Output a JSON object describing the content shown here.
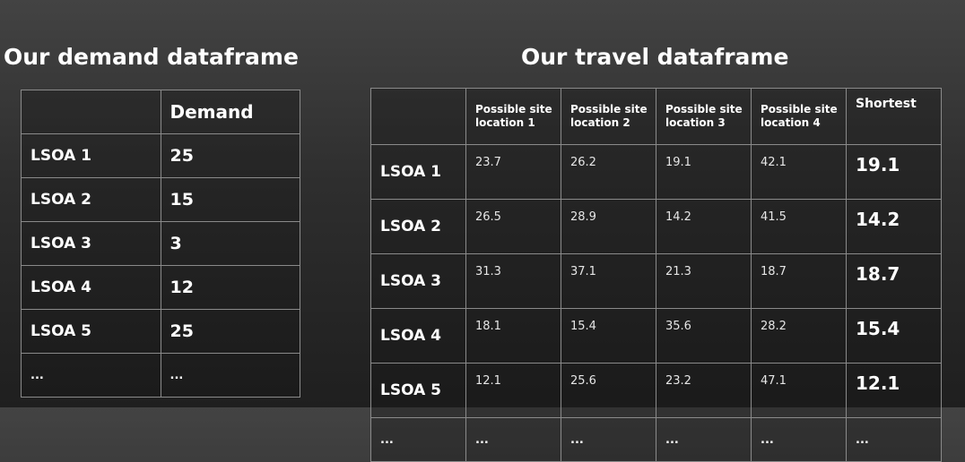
{
  "demand": {
    "title": "Our demand dataframe",
    "header": [
      "",
      "Demand"
    ],
    "rows": [
      {
        "label": "LSOA 1",
        "value": "25"
      },
      {
        "label": "LSOA 2",
        "value": "15"
      },
      {
        "label": "LSOA 3",
        "value": "3"
      },
      {
        "label": "LSOA 4",
        "value": "12"
      },
      {
        "label": "LSOA 5",
        "value": "25"
      },
      {
        "label": "...",
        "value": "..."
      }
    ]
  },
  "travel": {
    "title": "Our travel dataframe",
    "header": [
      "",
      "Possible site location 1",
      "Possible site location 2",
      "Possible site location 3",
      "Possible site location 4",
      "Shortest"
    ],
    "rows": [
      {
        "label": "LSOA 1",
        "values": [
          "23.7",
          "26.2",
          "19.1",
          "42.1"
        ],
        "shortest": "19.1"
      },
      {
        "label": "LSOA 2",
        "values": [
          "26.5",
          "28.9",
          "14.2",
          "41.5"
        ],
        "shortest": "14.2"
      },
      {
        "label": "LSOA 3",
        "values": [
          "31.3",
          "37.1",
          "21.3",
          "18.7"
        ],
        "shortest": "18.7"
      },
      {
        "label": "LSOA 4",
        "values": [
          "18.1",
          "15.4",
          "35.6",
          "28.2"
        ],
        "shortest": "15.4"
      },
      {
        "label": "LSOA 5",
        "values": [
          "12.1",
          "25.6",
          "23.2",
          "47.1"
        ],
        "shortest": "12.1"
      },
      {
        "label": "...",
        "values": [
          "...",
          "...",
          "...",
          "..."
        ],
        "shortest": "..."
      }
    ]
  }
}
